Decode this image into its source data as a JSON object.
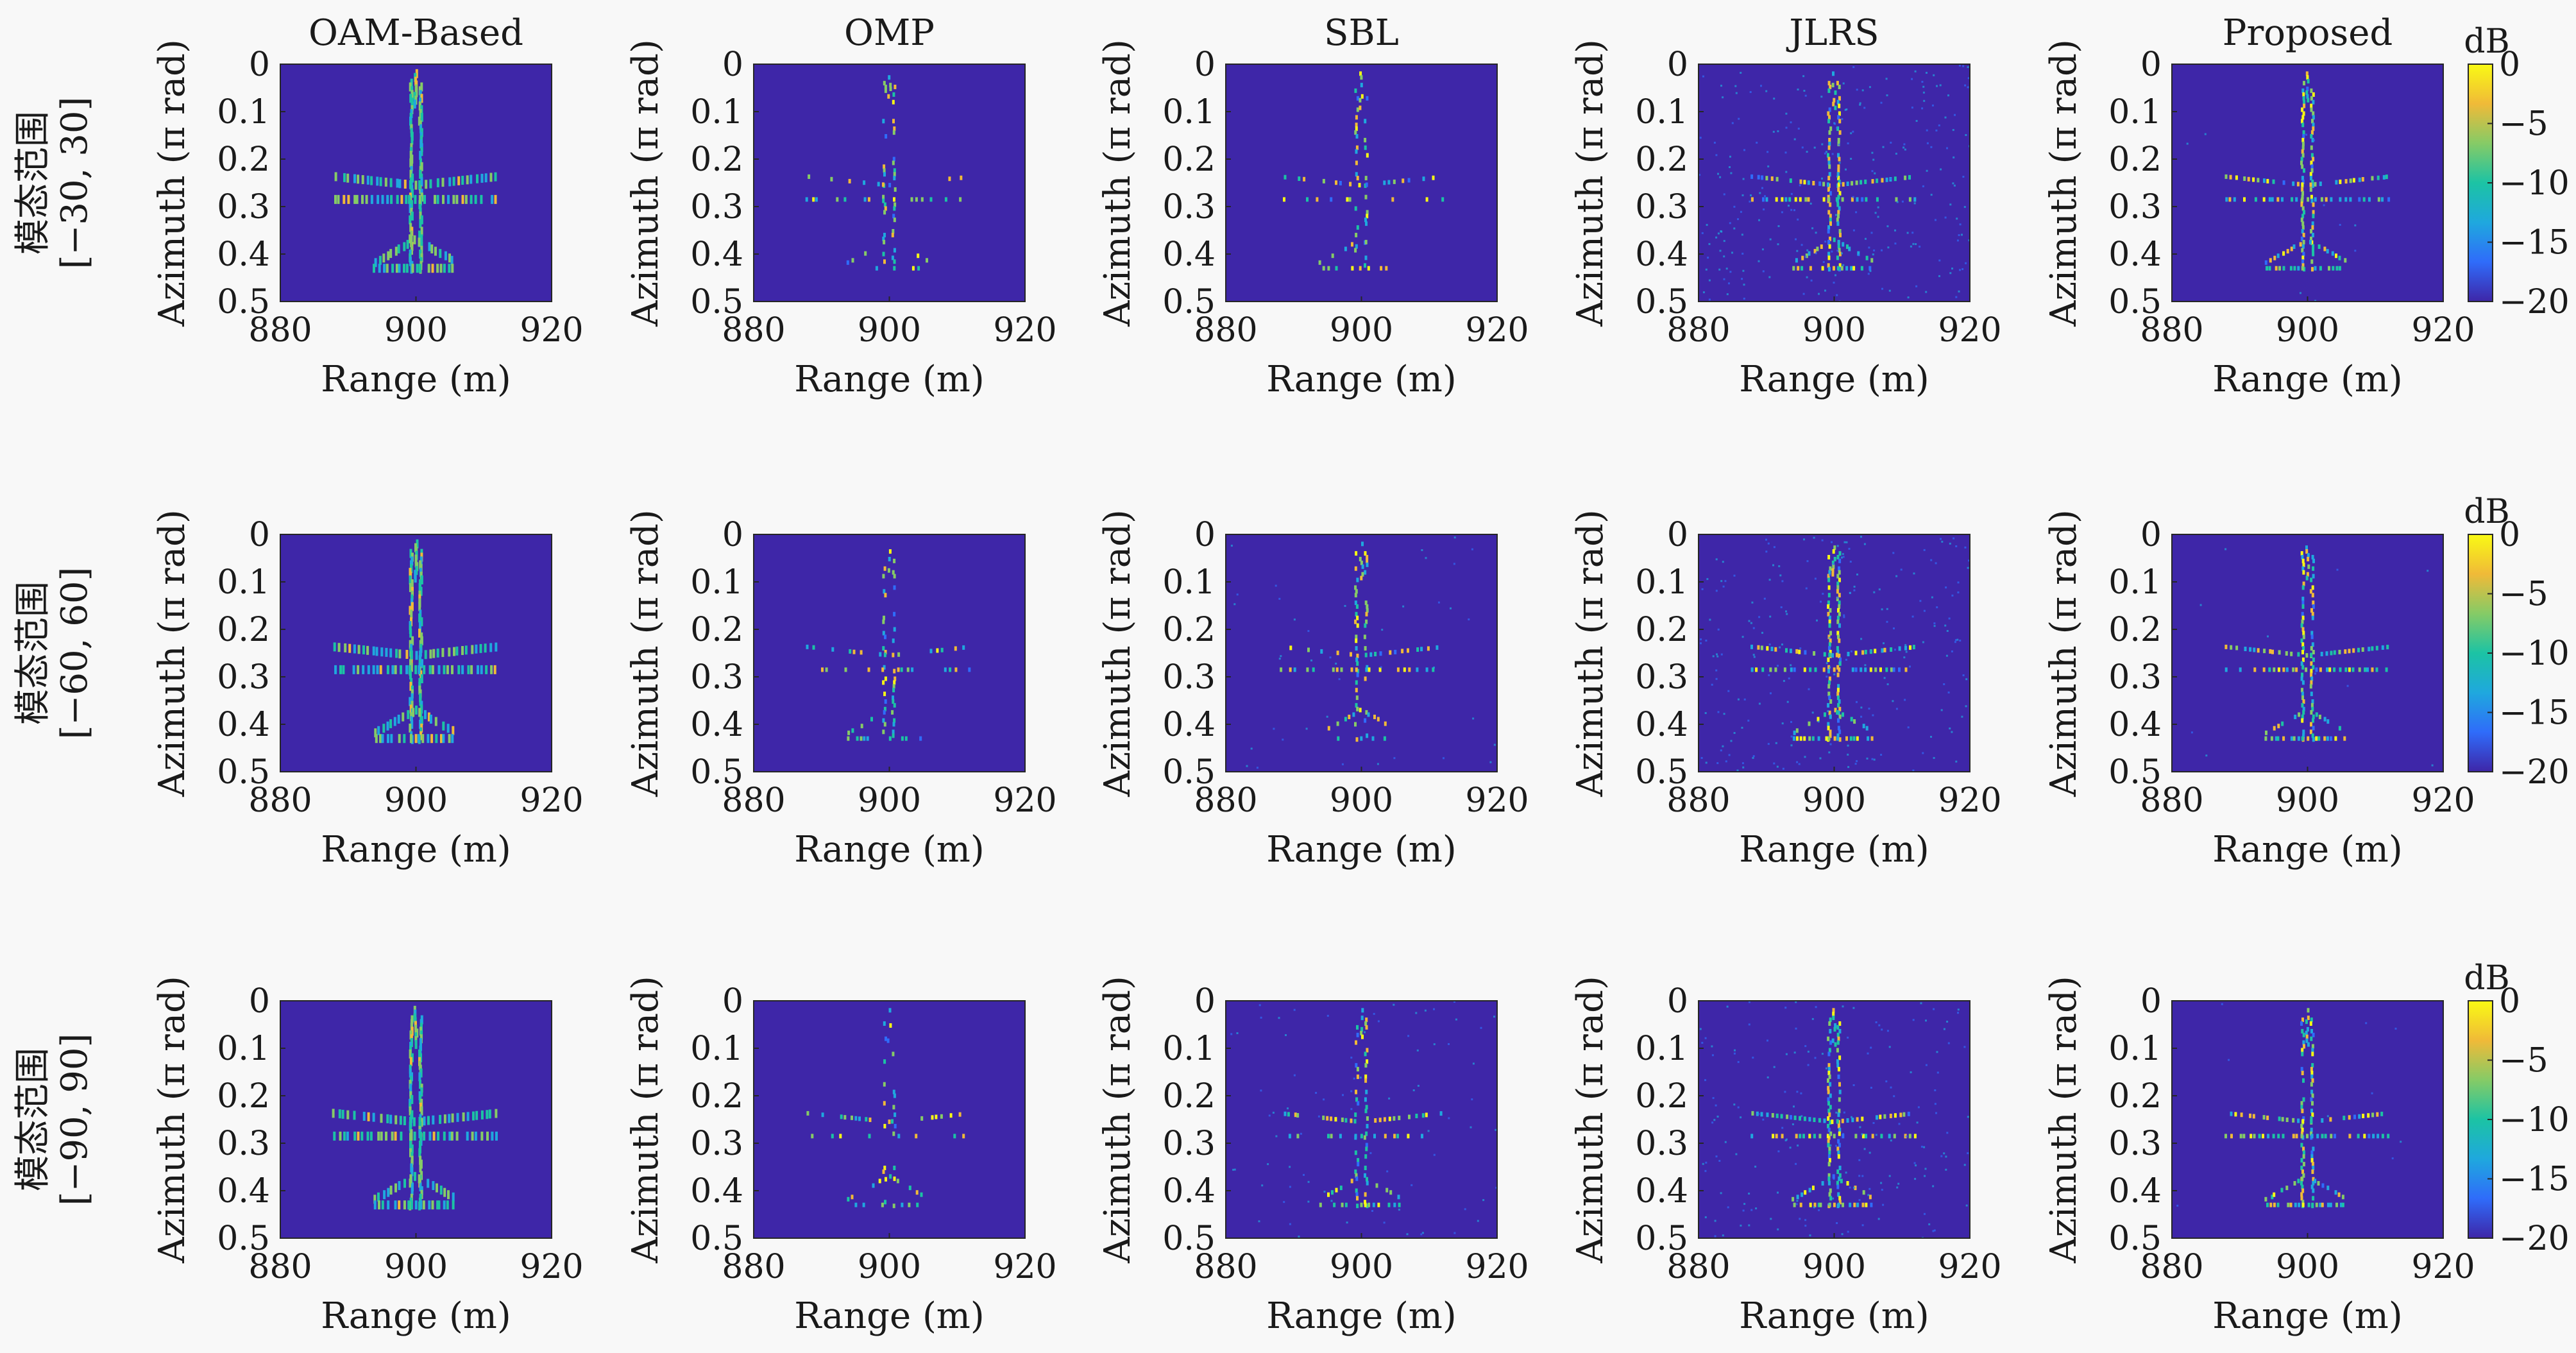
{
  "chart_data": {
    "type": "heatmap",
    "column_titles": [
      "OAM-Based",
      "OMP",
      "SBL",
      "JLRS",
      "Proposed"
    ],
    "row_labels": [
      {
        "line1": "模态范围",
        "line2": "[−30, 30]"
      },
      {
        "line1": "模态范围",
        "line2": "[−60, 60]"
      },
      {
        "line1": "模态范围",
        "line2": "[−90, 90]"
      }
    ],
    "xlabel": "Range (m)",
    "ylabel": "Azimuth (π rad)",
    "x_ticks": [
      "880",
      "900",
      "920"
    ],
    "y_ticks": [
      "0",
      "0.1",
      "0.2",
      "0.3",
      "0.4",
      "0.5"
    ],
    "xlim": [
      880,
      920
    ],
    "ylim": [
      0,
      0.5
    ],
    "colorbar": {
      "label": "dB",
      "ticks": [
        "0",
        "−5",
        "−10",
        "−15",
        "−20"
      ],
      "range": [
        -20,
        0
      ],
      "colors": [
        "#3e26a8",
        "#2f6cfa",
        "#1fa8de",
        "#1cc3a4",
        "#86cb66",
        "#f0ba38",
        "#f9fa14"
      ],
      "background": "#3e26a8"
    }
  }
}
